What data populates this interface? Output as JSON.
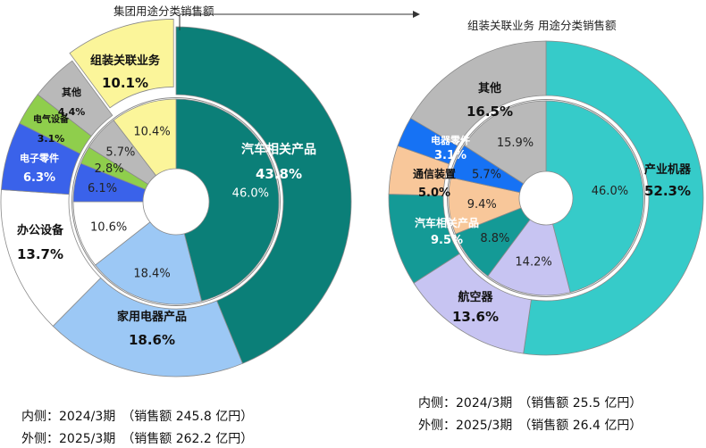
{
  "colors": {
    "automotive": "#0b7f78",
    "appliance": "#9cc8f5",
    "office": "#ffffff",
    "electronic": "#3a62ea",
    "electrical": "#8fce4c",
    "other": "#b9b9b9",
    "assembly": "#fbf59a",
    "industrial": "#36cbc9",
    "aerospace": "#c7c4f2",
    "auto_rel": "#149a96",
    "telecom": "#f8c79a",
    "elec_parts": "#1672f4",
    "stroke": "#8a8a8a"
  },
  "captions": {
    "left_title": "集团用途分类销售额",
    "right_title": "组装关联业务 用途分类销售额"
  },
  "footnotes": {
    "left_inner": "内侧：2024/3期　（销售额 245.8 亿円）",
    "left_outer": "外侧：2025/3期　（销售额 262.2 亿円）",
    "right_inner": "内侧：2024/3期　（销售额 25.5 亿円）",
    "right_outer": "外侧：2025/3期　（销售额 26.4 亿円）"
  },
  "chart_data": [
    {
      "type": "pie",
      "subtype": "donut",
      "title": "集团用途分类销售额",
      "rings": [
        "2025/3期",
        "2024/3期"
      ],
      "categories": [
        {
          "key": "automotive",
          "name": "汽车相关产品",
          "outer": 43.8,
          "inner": 46.0
        },
        {
          "key": "appliance",
          "name": "家用电器产品",
          "outer": 18.6,
          "inner": 18.4
        },
        {
          "key": "office",
          "name": "办公设备",
          "outer": 13.7,
          "inner": 10.6
        },
        {
          "key": "electronic",
          "name": "电子零件",
          "outer": 6.3,
          "inner": 6.1
        },
        {
          "key": "electrical",
          "name": "电气设备",
          "outer": 3.1,
          "inner": 2.8
        },
        {
          "key": "other",
          "name": "其他",
          "outer": 4.4,
          "inner": 5.7
        },
        {
          "key": "assembly",
          "name": "组装关联业务",
          "outer": 10.1,
          "inner": 10.4
        }
      ],
      "outer_labels": [
        {
          "key": "automotive",
          "name": "汽车相关产品",
          "value": "43.8%"
        },
        {
          "key": "appliance",
          "name": "家用电器产品",
          "value": "18.6%"
        },
        {
          "key": "office",
          "name": "办公设备",
          "value": "13.7%"
        },
        {
          "key": "electronic",
          "name": "电子零件",
          "value": "6.3%"
        },
        {
          "key": "electrical",
          "name": "电气设备",
          "value": "3.1%"
        },
        {
          "key": "other",
          "name": "其他",
          "value": "4.4%"
        },
        {
          "key": "assembly",
          "name": "组装关联业务",
          "value": "10.1%"
        }
      ],
      "inner_labels": [
        "46.0%",
        "18.4%",
        "10.6%",
        "6.1%",
        "2.8%",
        "5.7%",
        "10.4%"
      ],
      "exploded": "assembly"
    },
    {
      "type": "pie",
      "subtype": "donut",
      "title": "组装关联业务 用途分类销售额",
      "rings": [
        "2025/3期",
        "2024/3期"
      ],
      "categories": [
        {
          "key": "industrial",
          "name": "产业机器",
          "outer": 52.3,
          "inner": 46.0
        },
        {
          "key": "aerospace",
          "name": "航空器",
          "outer": 13.6,
          "inner": 14.2
        },
        {
          "key": "auto_rel",
          "name": "汽车相关产品",
          "outer": 9.5,
          "inner": 8.8
        },
        {
          "key": "telecom",
          "name": "通信装置",
          "outer": 5.0,
          "inner": 9.4
        },
        {
          "key": "elec_parts",
          "name": "电器零件",
          "outer": 3.1,
          "inner": 5.7
        },
        {
          "key": "other",
          "name": "其他",
          "outer": 16.5,
          "inner": 15.9
        }
      ],
      "outer_labels": [
        {
          "key": "industrial",
          "name": "产业机器",
          "value": "52.3%"
        },
        {
          "key": "aerospace",
          "name": "航空器",
          "value": "13.6%"
        },
        {
          "key": "auto_rel",
          "name": "汽车相关产品",
          "value": "9.5%"
        },
        {
          "key": "telecom",
          "name": "通信装置",
          "value": "5.0%"
        },
        {
          "key": "elec_parts",
          "name": "电器零件",
          "value": "3.1%"
        },
        {
          "key": "other",
          "name": "其他",
          "value": "16.5%"
        }
      ],
      "inner_labels": [
        "46.0%",
        "14.2%",
        "8.8%",
        "9.4%",
        "5.7%",
        "15.9%"
      ]
    }
  ]
}
